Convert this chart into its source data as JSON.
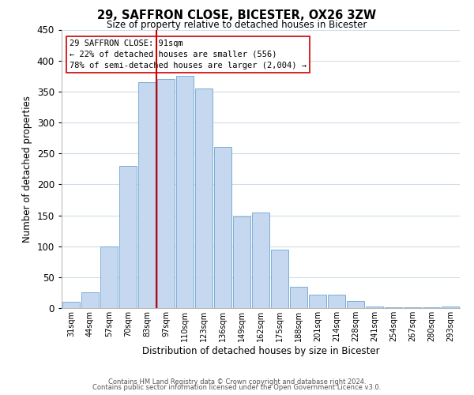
{
  "title": "29, SAFFRON CLOSE, BICESTER, OX26 3ZW",
  "subtitle": "Size of property relative to detached houses in Bicester",
  "xlabel": "Distribution of detached houses by size in Bicester",
  "ylabel": "Number of detached properties",
  "bar_labels": [
    "31sqm",
    "44sqm",
    "57sqm",
    "70sqm",
    "83sqm",
    "97sqm",
    "110sqm",
    "123sqm",
    "136sqm",
    "149sqm",
    "162sqm",
    "175sqm",
    "188sqm",
    "201sqm",
    "214sqm",
    "228sqm",
    "241sqm",
    "254sqm",
    "267sqm",
    "280sqm",
    "293sqm"
  ],
  "bar_values": [
    10,
    25,
    100,
    230,
    365,
    370,
    375,
    355,
    260,
    148,
    155,
    95,
    35,
    22,
    22,
    11,
    2,
    1,
    1,
    1,
    2
  ],
  "bar_color": "#c5d8f0",
  "bar_edge_color": "#7bafd4",
  "vline_index": 5,
  "vline_color": "#cc0000",
  "annotation_line1": "29 SAFFRON CLOSE: 91sqm",
  "annotation_line2": "← 22% of detached houses are smaller (556)",
  "annotation_line3": "78% of semi-detached houses are larger (2,004) →",
  "annotation_box_color": "#ffffff",
  "annotation_box_edge_color": "#cc0000",
  "ylim": [
    0,
    450
  ],
  "yticks": [
    0,
    50,
    100,
    150,
    200,
    250,
    300,
    350,
    400,
    450
  ],
  "footer_line1": "Contains HM Land Registry data © Crown copyright and database right 2024.",
  "footer_line2": "Contains public sector information licensed under the Open Government Licence v3.0.",
  "background_color": "#ffffff",
  "grid_color": "#d0dce8"
}
